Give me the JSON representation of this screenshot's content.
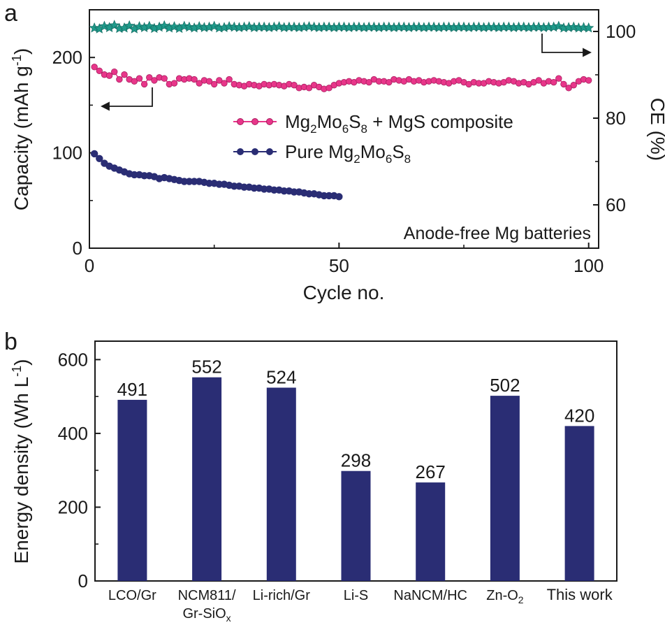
{
  "panel_labels": [
    "a",
    "b"
  ],
  "colors": {
    "composite": "#e8368a",
    "pure": "#2a2d74",
    "ce": "#1f9a8a",
    "bar": "#2a2d74",
    "highlight": "#e8368a",
    "axis": "#1a1a1a"
  },
  "chart_data": [
    {
      "type": "line",
      "panel": "a",
      "xlabel": "Cycle no.",
      "ylabel_left": "Capacity (mAh g-1)",
      "ylabel_right": "CE (%)",
      "annotation": "Anode-free Mg batteries",
      "xlim": [
        0,
        102
      ],
      "ylim_left": [
        0,
        250
      ],
      "ylim_right": [
        50,
        105
      ],
      "xticks": [
        "0",
        "50",
        "100"
      ],
      "yticks_left": [
        "0",
        "100",
        "200"
      ],
      "yticks_right": [
        "60",
        "80",
        "100"
      ],
      "legend_position": "center",
      "series": [
        {
          "name": "Mg2Mo6S8 + MgS composite",
          "axis": "left",
          "x": [
            1,
            2,
            3,
            4,
            5,
            6,
            7,
            8,
            9,
            10,
            11,
            12,
            13,
            14,
            15,
            16,
            17,
            18,
            19,
            20,
            21,
            22,
            23,
            24,
            25,
            26,
            27,
            28,
            29,
            30,
            31,
            32,
            33,
            34,
            35,
            36,
            37,
            38,
            39,
            40,
            41,
            42,
            43,
            44,
            45,
            46,
            47,
            48,
            49,
            50,
            51,
            52,
            53,
            54,
            55,
            56,
            57,
            58,
            59,
            60,
            61,
            62,
            63,
            64,
            65,
            66,
            67,
            68,
            69,
            70,
            71,
            72,
            73,
            74,
            75,
            76,
            77,
            78,
            79,
            80,
            81,
            82,
            83,
            84,
            85,
            86,
            87,
            88,
            89,
            90,
            91,
            92,
            93,
            94,
            95,
            96,
            97,
            98,
            99,
            100
          ],
          "y": [
            190,
            186,
            182,
            181,
            185,
            177,
            182,
            177,
            175,
            178,
            172,
            179,
            176,
            179,
            178,
            172,
            173,
            178,
            177,
            178,
            177,
            173,
            176,
            175,
            172,
            176,
            173,
            177,
            172,
            171,
            170,
            172,
            171,
            170,
            172,
            171,
            172,
            171,
            170,
            172,
            171,
            168,
            169,
            168,
            171,
            169,
            167,
            168,
            171,
            173,
            174,
            175,
            174,
            176,
            175,
            174,
            177,
            175,
            175,
            174,
            177,
            176,
            175,
            177,
            175,
            176,
            174,
            175,
            176,
            175,
            174,
            173,
            175,
            176,
            174,
            172,
            174,
            173,
            173,
            175,
            174,
            173,
            174,
            176,
            175,
            173,
            174,
            172,
            174,
            176,
            173,
            175,
            174,
            178,
            172,
            168,
            171,
            175,
            177,
            176
          ]
        },
        {
          "name": "Pure Mg2Mo6S8",
          "axis": "left",
          "x": [
            1,
            2,
            3,
            4,
            5,
            6,
            7,
            8,
            9,
            10,
            11,
            12,
            13,
            14,
            15,
            16,
            17,
            18,
            19,
            20,
            21,
            22,
            23,
            24,
            25,
            26,
            27,
            28,
            29,
            30,
            31,
            32,
            33,
            34,
            35,
            36,
            37,
            38,
            39,
            40,
            41,
            42,
            43,
            44,
            45,
            46,
            47,
            48,
            49,
            50
          ],
          "y": [
            99,
            94,
            89,
            86,
            84,
            82,
            80,
            78,
            77,
            77,
            76,
            76,
            75,
            73,
            74,
            73,
            72,
            71,
            70,
            70,
            70,
            70,
            69,
            68,
            68,
            67,
            67,
            66,
            65,
            65,
            64,
            64,
            63,
            63,
            62,
            62,
            61,
            61,
            60,
            60,
            59,
            59,
            58,
            57,
            57,
            56,
            55,
            55,
            55,
            54
          ]
        },
        {
          "name": "CE",
          "axis": "right",
          "x": [
            1,
            2,
            3,
            4,
            5,
            6,
            7,
            8,
            9,
            10,
            11,
            12,
            13,
            14,
            15,
            16,
            17,
            18,
            19,
            20,
            21,
            22,
            23,
            24,
            25,
            26,
            27,
            28,
            29,
            30,
            31,
            32,
            33,
            34,
            35,
            36,
            37,
            38,
            39,
            40,
            41,
            42,
            43,
            44,
            45,
            46,
            47,
            48,
            49,
            50,
            51,
            52,
            53,
            54,
            55,
            56,
            57,
            58,
            59,
            60,
            61,
            62,
            63,
            64,
            65,
            66,
            67,
            68,
            69,
            70,
            71,
            72,
            73,
            74,
            75,
            76,
            77,
            78,
            79,
            80,
            81,
            82,
            83,
            84,
            85,
            86,
            87,
            88,
            89,
            90,
            91,
            92,
            93,
            94,
            95,
            96,
            97,
            98,
            99,
            100
          ],
          "y": [
            100.8,
            100.6,
            101.2,
            100.9,
            101.4,
            100.7,
            100.8,
            101.3,
            100.6,
            101.1,
            100.9,
            101.2,
            100.7,
            101.0,
            101.3,
            100.8,
            101.1,
            100.7,
            101.2,
            101.0,
            100.8,
            101.1,
            100.9,
            101.0,
            101.2,
            100.8,
            100.9,
            101.1,
            101.0,
            100.9,
            101.0,
            101.1,
            100.9,
            101.0,
            101.0,
            100.9,
            101.0,
            101.1,
            100.9,
            101.0,
            101.0,
            100.9,
            101.0,
            101.1,
            101.0,
            100.9,
            101.0,
            101.0,
            100.9,
            101.0,
            101.0,
            100.9,
            101.0,
            101.0,
            100.9,
            101.0,
            101.0,
            100.9,
            101.0,
            101.0,
            100.9,
            101.0,
            101.0,
            100.9,
            101.0,
            101.0,
            100.9,
            101.0,
            101.0,
            100.9,
            101.0,
            101.0,
            100.9,
            101.0,
            101.0,
            100.9,
            101.0,
            101.0,
            100.9,
            101.0,
            101.0,
            100.9,
            101.0,
            101.0,
            100.9,
            101.0,
            101.0,
            100.9,
            101.0,
            101.0,
            100.9,
            101.0,
            101.0,
            101.2,
            100.8,
            100.9,
            101.0,
            100.8,
            100.9,
            100.8
          ]
        }
      ]
    },
    {
      "type": "bar",
      "panel": "b",
      "ylabel": "Energy density (Wh L-1)",
      "ylim": [
        0,
        650
      ],
      "yticks": [
        "0",
        "200",
        "400",
        "600"
      ],
      "categories": [
        "LCO/Gr",
        "NCM811/\nGr-SiOx",
        "Li-rich/Gr",
        "Li-S",
        "NaNCM/HC",
        "Zn-O2",
        "This work"
      ],
      "values": [
        491,
        552,
        524,
        298,
        267,
        502,
        420
      ],
      "value_labels": [
        "491",
        "552",
        "524",
        "298",
        "267",
        "502",
        "420"
      ],
      "highlighted_category": "This work"
    }
  ]
}
